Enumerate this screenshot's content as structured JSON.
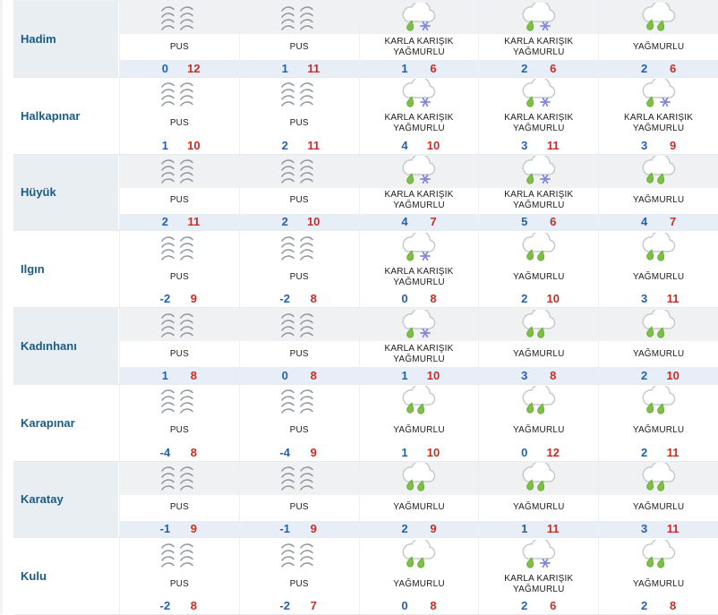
{
  "palette": {
    "district_text": "#1a5b87",
    "min_temp_blue": "#2262ae",
    "max_temp_red": "#cc2b24",
    "shaded_icon_strip": "#f0f1f2",
    "shaded_temp_strip": "#e8eef7",
    "shaded_district_cell": "#e9eef3",
    "rain_drop_green": "#7cc142",
    "snowflake_purple": "#8286d9",
    "cloud_outline_gray": "#c6cacd",
    "fog_stroke_gray": "#8d9399"
  },
  "table": {
    "column_count": 5,
    "rows": [
      {
        "district": "Hadim",
        "cells": [
          {
            "icon": "fog-icon",
            "condition": "PUS",
            "min": "0",
            "max": "12"
          },
          {
            "icon": "fog-icon",
            "condition": "PUS",
            "min": "1",
            "max": "11"
          },
          {
            "icon": "sleet-icon",
            "condition": "KARLA KARIŞIK YAĞMURLU",
            "min": "1",
            "max": "6"
          },
          {
            "icon": "sleet-icon",
            "condition": "KARLA KARIŞIK YAĞMURLU",
            "min": "2",
            "max": "6"
          },
          {
            "icon": "rain-icon",
            "condition": "YAĞMURLU",
            "min": "2",
            "max": "6"
          }
        ]
      },
      {
        "district": "Halkapınar",
        "cells": [
          {
            "icon": "fog-icon",
            "condition": "PUS",
            "min": "1",
            "max": "10"
          },
          {
            "icon": "fog-icon",
            "condition": "PUS",
            "min": "2",
            "max": "11"
          },
          {
            "icon": "sleet-icon",
            "condition": "KARLA KARIŞIK YAĞMURLU",
            "min": "4",
            "max": "10"
          },
          {
            "icon": "sleet-icon",
            "condition": "KARLA KARIŞIK YAĞMURLU",
            "min": "3",
            "max": "11"
          },
          {
            "icon": "sleet-icon",
            "condition": "KARLA KARIŞIK YAĞMURLU",
            "min": "3",
            "max": "9"
          }
        ]
      },
      {
        "district": "Hüyük",
        "cells": [
          {
            "icon": "fog-icon",
            "condition": "PUS",
            "min": "2",
            "max": "11"
          },
          {
            "icon": "fog-icon",
            "condition": "PUS",
            "min": "2",
            "max": "10"
          },
          {
            "icon": "sleet-icon",
            "condition": "KARLA KARIŞIK YAĞMURLU",
            "min": "4",
            "max": "7"
          },
          {
            "icon": "sleet-icon",
            "condition": "KARLA KARIŞIK YAĞMURLU",
            "min": "5",
            "max": "6"
          },
          {
            "icon": "rain-icon",
            "condition": "YAĞMURLU",
            "min": "4",
            "max": "7"
          }
        ]
      },
      {
        "district": "Ilgın",
        "cells": [
          {
            "icon": "fog-icon",
            "condition": "PUS",
            "min": "-2",
            "max": "9"
          },
          {
            "icon": "fog-icon",
            "condition": "PUS",
            "min": "-2",
            "max": "8"
          },
          {
            "icon": "sleet-icon",
            "condition": "KARLA KARIŞIK YAĞMURLU",
            "min": "0",
            "max": "8"
          },
          {
            "icon": "rain-icon",
            "condition": "YAĞMURLU",
            "min": "2",
            "max": "10"
          },
          {
            "icon": "rain-icon",
            "condition": "YAĞMURLU",
            "min": "3",
            "max": "11"
          }
        ]
      },
      {
        "district": "Kadınhanı",
        "cells": [
          {
            "icon": "fog-icon",
            "condition": "PUS",
            "min": "1",
            "max": "8"
          },
          {
            "icon": "fog-icon",
            "condition": "PUS",
            "min": "0",
            "max": "8"
          },
          {
            "icon": "sleet-icon",
            "condition": "KARLA KARIŞIK YAĞMURLU",
            "min": "1",
            "max": "10"
          },
          {
            "icon": "rain-icon",
            "condition": "YAĞMURLU",
            "min": "3",
            "max": "8"
          },
          {
            "icon": "rain-icon",
            "condition": "YAĞMURLU",
            "min": "2",
            "max": "10"
          }
        ]
      },
      {
        "district": "Karapınar",
        "cells": [
          {
            "icon": "fog-icon",
            "condition": "PUS",
            "min": "-4",
            "max": "8"
          },
          {
            "icon": "fog-icon",
            "condition": "PUS",
            "min": "-4",
            "max": "9"
          },
          {
            "icon": "rain-icon",
            "condition": "YAĞMURLU",
            "min": "1",
            "max": "10"
          },
          {
            "icon": "rain-icon",
            "condition": "YAĞMURLU",
            "min": "0",
            "max": "12"
          },
          {
            "icon": "rain-icon",
            "condition": "YAĞMURLU",
            "min": "2",
            "max": "11"
          }
        ]
      },
      {
        "district": "Karatay",
        "cells": [
          {
            "icon": "fog-icon",
            "condition": "PUS",
            "min": "-1",
            "max": "9"
          },
          {
            "icon": "fog-icon",
            "condition": "PUS",
            "min": "-1",
            "max": "9"
          },
          {
            "icon": "rain-icon",
            "condition": "YAĞMURLU",
            "min": "2",
            "max": "9"
          },
          {
            "icon": "rain-icon",
            "condition": "YAĞMURLU",
            "min": "1",
            "max": "11"
          },
          {
            "icon": "rain-icon",
            "condition": "YAĞMURLU",
            "min": "3",
            "max": "11"
          }
        ]
      },
      {
        "district": "Kulu",
        "cells": [
          {
            "icon": "fog-icon",
            "condition": "PUS",
            "min": "-2",
            "max": "8"
          },
          {
            "icon": "fog-icon",
            "condition": "PUS",
            "min": "-2",
            "max": "7"
          },
          {
            "icon": "rain-icon",
            "condition": "YAĞMURLU",
            "min": "0",
            "max": "8"
          },
          {
            "icon": "sleet-icon",
            "condition": "KARLA KARIŞIK YAĞMURLU",
            "min": "2",
            "max": "6"
          },
          {
            "icon": "rain-icon",
            "condition": "YAĞMURLU",
            "min": "2",
            "max": "8"
          }
        ]
      }
    ]
  }
}
